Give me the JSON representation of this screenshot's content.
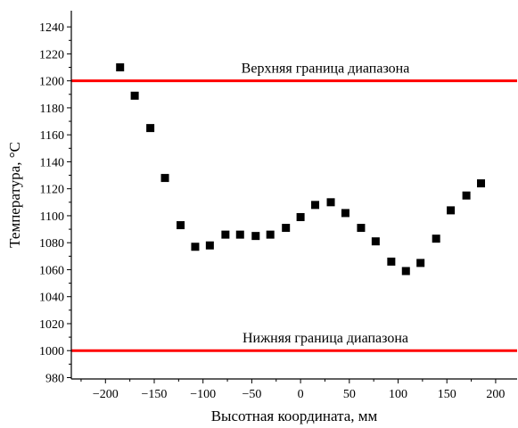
{
  "chart_data": {
    "type": "scatter",
    "title": "",
    "xlabel": "Высотная координата, мм",
    "ylabel": "Температура, °С",
    "xlim": [
      -235,
      222
    ],
    "ylim": [
      979,
      1252
    ],
    "x_ticks": [
      -200,
      -150,
      -100,
      -50,
      0,
      50,
      100,
      150,
      200
    ],
    "x_tick_labels": [
      "−200",
      "−150",
      "−100",
      "−50",
      "0",
      "50",
      "100",
      "150",
      "200"
    ],
    "y_ticks": [
      980,
      1000,
      1020,
      1040,
      1060,
      1080,
      1100,
      1120,
      1140,
      1160,
      1180,
      1200,
      1220,
      1240
    ],
    "y_tick_labels": [
      "980",
      "1000",
      "1020",
      "1040",
      "1060",
      "1080",
      "1100",
      "1120",
      "1140",
      "1160",
      "1180",
      "1200",
      "1220",
      "1240"
    ],
    "grid": false,
    "marker_color": "#000000",
    "reference_lines": [
      {
        "label": "Верхняя граница диапазона",
        "y": 1200,
        "color": "#ff0000"
      },
      {
        "label": "Нижняя граница диапазона",
        "y": 1000,
        "color": "#ff0000"
      }
    ],
    "series": [
      {
        "points": [
          {
            "x": -185,
            "y": 1210
          },
          {
            "x": -170,
            "y": 1189
          },
          {
            "x": -154,
            "y": 1165
          },
          {
            "x": -139,
            "y": 1128
          },
          {
            "x": -123,
            "y": 1093
          },
          {
            "x": -108,
            "y": 1077
          },
          {
            "x": -93,
            "y": 1078
          },
          {
            "x": -77,
            "y": 1086
          },
          {
            "x": -62,
            "y": 1086
          },
          {
            "x": -46,
            "y": 1085
          },
          {
            "x": -31,
            "y": 1086
          },
          {
            "x": -15,
            "y": 1091
          },
          {
            "x": 0,
            "y": 1099
          },
          {
            "x": 15,
            "y": 1108
          },
          {
            "x": 31,
            "y": 1110
          },
          {
            "x": 46,
            "y": 1102
          },
          {
            "x": 62,
            "y": 1091
          },
          {
            "x": 77,
            "y": 1081
          },
          {
            "x": 93,
            "y": 1066
          },
          {
            "x": 108,
            "y": 1059
          },
          {
            "x": 123,
            "y": 1065
          },
          {
            "x": 139,
            "y": 1083
          },
          {
            "x": 154,
            "y": 1104
          },
          {
            "x": 170,
            "y": 1115
          },
          {
            "x": 185,
            "y": 1124
          }
        ]
      }
    ]
  }
}
